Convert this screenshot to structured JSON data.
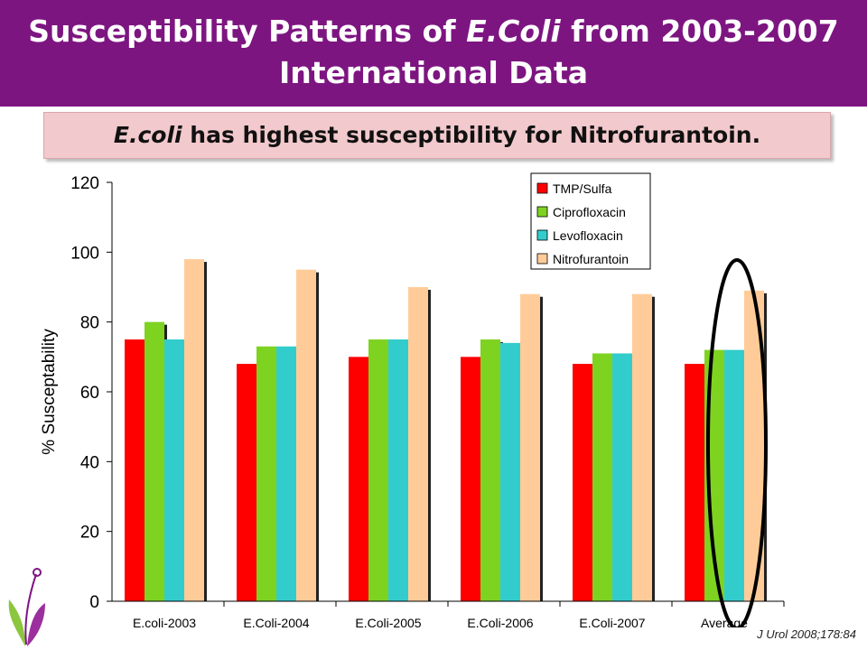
{
  "title": {
    "line1_prefix": "Susceptibility Patterns of ",
    "line1_italic": "E.Coli",
    "line1_suffix": " from 2003-2007",
    "line2": "International Data"
  },
  "subtitle": {
    "italic": "E.coli",
    "rest": " has highest susceptibility for Nitrofurantoin."
  },
  "citation": "J Urol 2008;178:84",
  "colors": {
    "header_bg": "#7d1581",
    "subtitle_bg": "#f2c9cc",
    "highlight_ellipse": "#000000"
  },
  "chart_data": {
    "type": "bar",
    "title": "",
    "xlabel": "",
    "ylabel": "% Susceptability",
    "ylim": [
      0,
      120
    ],
    "yticks": [
      0,
      20,
      40,
      60,
      80,
      100,
      120
    ],
    "categories": [
      "E.coli-2003",
      "E.Coli-2004",
      "E.Coli-2005",
      "E.Coli-2006",
      "E.Coli-2007",
      "Average"
    ],
    "series": [
      {
        "name": "TMP/Sulfa",
        "color": "#ff0000",
        "values": [
          75,
          68,
          70,
          70,
          68,
          68
        ]
      },
      {
        "name": "Ciprofloxacin",
        "color": "#7ed321",
        "values": [
          80,
          73,
          75,
          75,
          71,
          72
        ]
      },
      {
        "name": "Levofloxacin",
        "color": "#33cccc",
        "values": [
          75,
          73,
          75,
          74,
          71,
          72
        ]
      },
      {
        "name": "Nitrofurantoin",
        "color": "#ffcc99",
        "values": [
          98,
          95,
          90,
          88,
          88,
          89
        ]
      }
    ],
    "legend_position": "top-right",
    "highlight": "Average"
  }
}
